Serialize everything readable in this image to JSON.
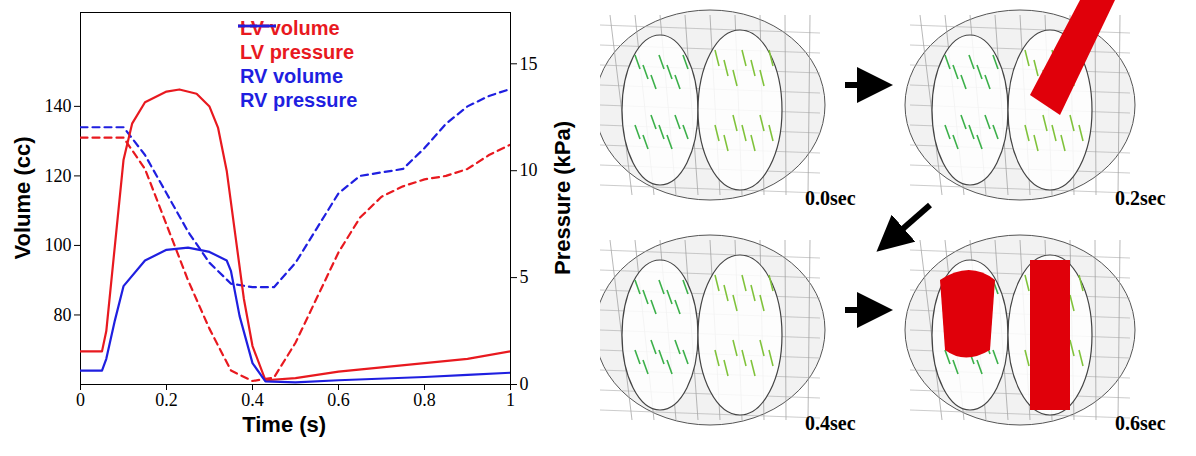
{
  "chart_data": {
    "type": "line",
    "x_label": "Time (s)",
    "y_label": "Volume (cc)",
    "y2_label": "Pressure (kPa)",
    "xlim": [
      0,
      1
    ],
    "xticks": [
      0,
      0.2,
      0.4,
      0.6,
      0.8,
      1
    ],
    "ylim": [
      60,
      167
    ],
    "yticks": [
      80,
      100,
      120,
      140
    ],
    "y2lim": [
      0,
      17.4
    ],
    "y2ticks": [
      0,
      5,
      10,
      15
    ],
    "legend": "top",
    "grid": false,
    "series": [
      {
        "name": "LV volume",
        "color": "#e8191f",
        "line_style": "dashed",
        "axis": "y",
        "x": [
          0,
          0.05,
          0.1,
          0.15,
          0.2,
          0.25,
          0.3,
          0.35,
          0.4,
          0.45,
          0.5,
          0.55,
          0.6,
          0.65,
          0.7,
          0.75,
          0.8,
          0.85,
          0.9,
          0.95,
          1.0
        ],
        "values": [
          131,
          131,
          131,
          122,
          106,
          90,
          76,
          64,
          61,
          62,
          72,
          85,
          98,
          108,
          114,
          117,
          119,
          120,
          122,
          126,
          129
        ]
      },
      {
        "name": "LV pressure",
        "color": "#e8191f",
        "line_style": "solid",
        "axis": "y2",
        "x": [
          0,
          0.05,
          0.06,
          0.08,
          0.1,
          0.12,
          0.15,
          0.2,
          0.23,
          0.27,
          0.3,
          0.32,
          0.34,
          0.36,
          0.38,
          0.4,
          0.43,
          0.5,
          0.6,
          0.7,
          0.8,
          0.9,
          1.0
        ],
        "values": [
          1.55,
          1.55,
          2.5,
          6.5,
          10.5,
          12.2,
          13.2,
          13.7,
          13.8,
          13.6,
          13.0,
          12.0,
          10.0,
          7.0,
          4.0,
          1.8,
          0.2,
          0.3,
          0.6,
          0.8,
          1.0,
          1.2,
          1.55
        ]
      },
      {
        "name": "RV volume",
        "color": "#1f1fe0",
        "line_style": "dashed",
        "axis": "y",
        "x": [
          0,
          0.05,
          0.1,
          0.15,
          0.2,
          0.25,
          0.3,
          0.35,
          0.4,
          0.45,
          0.5,
          0.55,
          0.6,
          0.65,
          0.7,
          0.75,
          0.8,
          0.85,
          0.9,
          0.95,
          1.0
        ],
        "values": [
          134,
          134,
          134,
          126,
          115,
          104,
          95,
          89,
          88,
          88,
          95,
          105,
          115,
          120,
          121,
          122,
          128,
          135,
          140,
          143,
          145
        ]
      },
      {
        "name": "RV pressure",
        "color": "#1f1fe0",
        "line_style": "solid",
        "axis": "y2",
        "x": [
          0,
          0.05,
          0.06,
          0.08,
          0.1,
          0.15,
          0.2,
          0.25,
          0.3,
          0.34,
          0.35,
          0.37,
          0.4,
          0.43,
          0.5,
          0.6,
          0.8,
          0.9,
          1.0
        ],
        "values": [
          0.65,
          0.65,
          1.2,
          3.0,
          4.6,
          5.8,
          6.3,
          6.4,
          6.2,
          5.8,
          5.3,
          3.2,
          1.0,
          0.15,
          0.1,
          0.2,
          0.35,
          0.45,
          0.55
        ]
      }
    ]
  },
  "snapshots": {
    "labels": [
      "0.0sec",
      "0.2sec",
      "0.4sec",
      "0.6sec"
    ]
  }
}
